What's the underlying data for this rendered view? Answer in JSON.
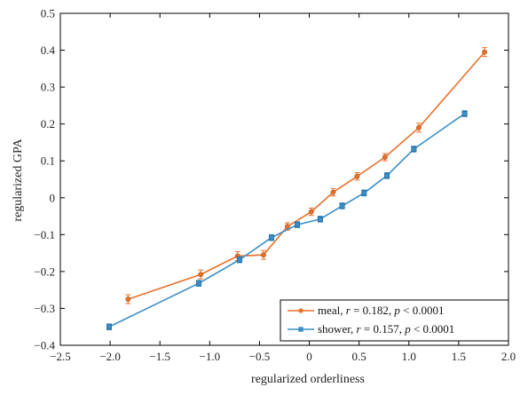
{
  "chart_data": {
    "type": "line",
    "title": "",
    "xlabel": "regularized orderliness",
    "ylabel": "regularized GPA",
    "xlim": [
      -2.5,
      2.0
    ],
    "ylim": [
      -0.4,
      0.5
    ],
    "xticks": [
      -2.5,
      -2.0,
      -1.5,
      -1.0,
      -0.5,
      0,
      0.5,
      1.0,
      1.5,
      2.0
    ],
    "xtick_labels": [
      "−2.5",
      "−2.0",
      "−1.5",
      "−1.0",
      "−0.5",
      "0",
      "0.5",
      "1.0",
      "1.5",
      "2.0"
    ],
    "yticks": [
      -0.4,
      -0.3,
      -0.2,
      -0.1,
      0,
      0.1,
      0.2,
      0.3,
      0.4,
      0.5
    ],
    "ytick_labels": [
      "−0.4",
      "−0.3",
      "−0.2",
      "−0.1",
      "0",
      "0.1",
      "0.2",
      "0.3",
      "0.4",
      "0.5"
    ],
    "grid": false,
    "legend_position": "bottom-right",
    "series": [
      {
        "name": "meal",
        "stat_r": "0.182",
        "stat_p": "0.0001",
        "color": "#e8712a",
        "marker": "circle",
        "x": [
          -1.82,
          -1.09,
          -0.72,
          -0.46,
          -0.22,
          0.02,
          0.24,
          0.48,
          0.76,
          1.1,
          1.76
        ],
        "y": [
          -0.275,
          -0.208,
          -0.158,
          -0.155,
          -0.078,
          -0.038,
          0.015,
          0.058,
          0.11,
          0.19,
          0.395
        ],
        "err": [
          0.012,
          0.012,
          0.012,
          0.012,
          0.01,
          0.01,
          0.01,
          0.01,
          0.01,
          0.012,
          0.012
        ]
      },
      {
        "name": "shower",
        "stat_r": "0.157",
        "stat_p": "0.0001",
        "color": "#3a8ec7",
        "marker": "square",
        "x": [
          -2.01,
          -1.11,
          -0.7,
          -0.38,
          -0.12,
          0.11,
          0.33,
          0.55,
          0.78,
          1.05,
          1.56
        ],
        "y": [
          -0.35,
          -0.232,
          -0.168,
          -0.108,
          -0.073,
          -0.058,
          -0.022,
          0.013,
          0.06,
          0.132,
          0.228
        ],
        "err": [
          0.008,
          0.008,
          0.008,
          0.008,
          0.008,
          0.008,
          0.008,
          0.008,
          0.008,
          0.008,
          0.008
        ]
      }
    ]
  }
}
